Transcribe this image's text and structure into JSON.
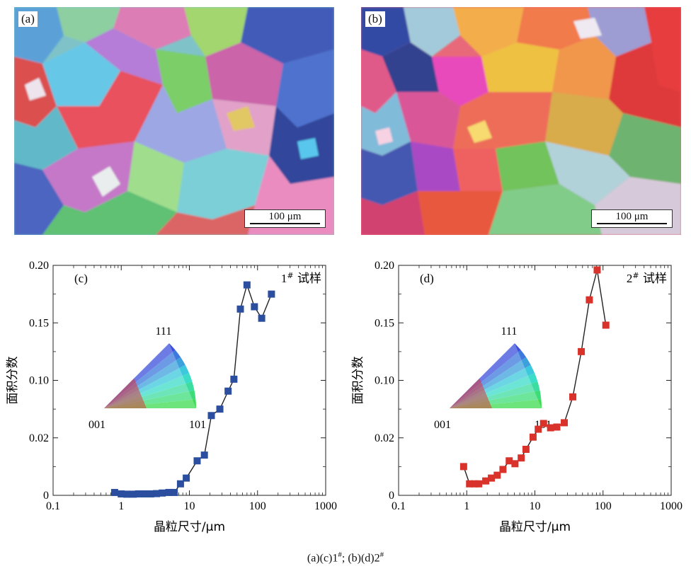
{
  "micrographs": [
    {
      "label": "(a)",
      "scale_bar": "100 μm"
    },
    {
      "label": "(b)",
      "scale_bar": "100 μm"
    }
  ],
  "chart_data": [
    {
      "type": "scatter",
      "panel_label": "(c)",
      "title": "1# 试样",
      "xlabel": "晶粒尺寸/μm",
      "ylabel": "面积分数",
      "xscale": "log",
      "xlim": [
        0.1,
        1000
      ],
      "ylim": [
        0,
        0.2
      ],
      "x_ticks": [
        "0.1",
        "1",
        "10",
        "100",
        "1000"
      ],
      "y_ticks": [
        "0",
        "0.02",
        "0.10",
        "0.15",
        "0.20"
      ],
      "series": [
        {
          "marker": "square",
          "color": "#2b4f9e",
          "x": [
            0.8,
            1.0,
            1.2,
            1.5,
            1.8,
            2.2,
            2.7,
            3.3,
            4.0,
            5.0,
            6.0,
            7.4,
            9.0,
            13.0,
            16.6,
            21.0,
            28.0,
            37.0,
            45.0,
            56.0,
            70.0,
            90.0,
            115.0,
            160.0
          ],
          "y": [
            0.001,
            0.0005,
            0.0004,
            0.0004,
            0.0005,
            0.0005,
            0.0005,
            0.0006,
            0.0008,
            0.001,
            0.001,
            0.004,
            0.006,
            0.012,
            0.014,
            0.051,
            0.06,
            0.085,
            0.101,
            0.162,
            0.183,
            0.164,
            0.154,
            0.175
          ]
        }
      ],
      "legend": "none",
      "inset": {
        "type": "inverse pole figure",
        "vertices": [
          "001",
          "101",
          "111"
        ]
      }
    },
    {
      "type": "scatter",
      "panel_label": "(d)",
      "title": "2# 试样",
      "xlabel": "晶粒尺寸/μm",
      "ylabel": "面积分数",
      "xscale": "log",
      "xlim": [
        0.1,
        1000
      ],
      "ylim": [
        0,
        0.2
      ],
      "x_ticks": [
        "0.1",
        "1",
        "10",
        "100",
        "1000"
      ],
      "y_ticks": [
        "0",
        "0.02",
        "0.10",
        "0.15",
        "0.20"
      ],
      "series": [
        {
          "marker": "square",
          "color": "#d8322a",
          "x": [
            0.9,
            1.1,
            1.3,
            1.5,
            1.9,
            2.3,
            2.8,
            3.4,
            4.2,
            5.1,
            6.3,
            7.4,
            9.4,
            11.2,
            13.4,
            17.0,
            21.0,
            27.0,
            36.0,
            48.0,
            63.0,
            82.0,
            110.0
          ],
          "y": [
            0.01,
            0.004,
            0.004,
            0.004,
            0.005,
            0.006,
            0.007,
            0.009,
            0.012,
            0.011,
            0.013,
            0.016,
            0.021,
            0.032,
            0.04,
            0.034,
            0.035,
            0.041,
            0.077,
            0.125,
            0.17,
            0.196,
            0.148
          ]
        }
      ],
      "legend": "none",
      "inset": {
        "type": "inverse pole figure",
        "vertices": [
          "001",
          "101",
          "111"
        ]
      }
    }
  ],
  "caption": {
    "prefix": "(a)(c)1",
    "sup1": "#",
    "mid": "; (b)(d)2",
    "sup2": "#"
  }
}
